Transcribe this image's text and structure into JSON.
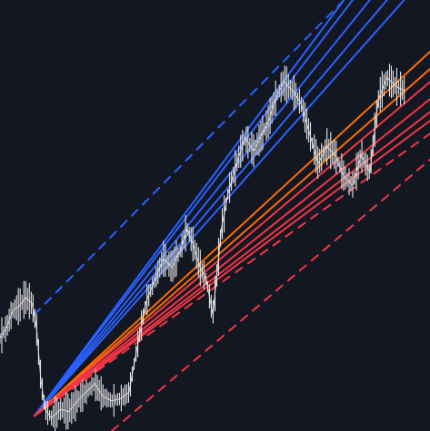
{
  "chart_data": {
    "type": "line",
    "title": "",
    "xlabel": "",
    "ylabel": "",
    "xlim": [
      0,
      100
    ],
    "ylim": [
      0,
      100
    ],
    "grid": false,
    "legend": "none",
    "colors": {
      "background": "#131722",
      "price": "#e6e6e6",
      "blue": "#2962ff",
      "orange": "#ff6d00",
      "red": "#f23645"
    },
    "price_series": {
      "name": "",
      "x": [
        0,
        1.5,
        3,
        4.5,
        6,
        7.5,
        8.5,
        9.5,
        10.5,
        12,
        14,
        16,
        18,
        20,
        22,
        24,
        26,
        28,
        30,
        32,
        34,
        36,
        38,
        40,
        42,
        43.5,
        45,
        46.5,
        48,
        49.5,
        50.5,
        51.5,
        53,
        55,
        57,
        59,
        61,
        62.5,
        64,
        66,
        68,
        70,
        72,
        74,
        76,
        78,
        80,
        82,
        84,
        86,
        88,
        90,
        92,
        94
      ],
      "y": [
        21.5,
        24,
        28,
        29,
        31,
        29.5,
        24,
        12,
        5,
        3,
        5,
        4.5,
        7,
        9,
        11,
        8,
        7,
        7.5,
        9,
        20,
        30,
        35,
        40,
        38,
        42,
        47,
        43,
        38,
        35,
        27,
        37,
        47,
        55,
        62,
        68,
        65,
        69,
        72,
        77,
        81,
        79,
        76,
        69,
        62,
        66,
        64,
        59,
        57,
        64,
        60,
        77,
        82,
        80,
        79
      ]
    },
    "fan_origin": [
      8,
      3.5
    ],
    "fan_lines": [
      {
        "name": "",
        "style": "dashed",
        "color": "#2962ff",
        "x": [
          8,
          80
        ],
        "y": [
          27,
          100
        ]
      },
      {
        "name": "",
        "style": "solid",
        "color": "#2962ff",
        "x": [
          8,
          80
        ],
        "y": [
          3.5,
          100
        ]
      },
      {
        "name": "",
        "style": "solid",
        "color": "#2962ff",
        "x": [
          8,
          82
        ],
        "y": [
          3.5,
          100
        ]
      },
      {
        "name": "",
        "style": "solid",
        "color": "#2962ff",
        "x": [
          8,
          86
        ],
        "y": [
          3.5,
          100
        ]
      },
      {
        "name": "",
        "style": "solid",
        "color": "#2962ff",
        "x": [
          8,
          90
        ],
        "y": [
          3.5,
          100
        ]
      },
      {
        "name": "",
        "style": "solid",
        "color": "#2962ff",
        "x": [
          8,
          94
        ],
        "y": [
          3.5,
          100
        ]
      },
      {
        "name": "",
        "style": "solid",
        "color": "#ff6d00",
        "x": [
          8,
          100
        ],
        "y": [
          3.5,
          88
        ]
      },
      {
        "name": "",
        "style": "solid",
        "color": "#ff6d00",
        "x": [
          8,
          100
        ],
        "y": [
          3.5,
          84
        ]
      },
      {
        "name": "",
        "style": "solid",
        "color": "#f23645",
        "x": [
          8,
          100
        ],
        "y": [
          3.5,
          81
        ]
      },
      {
        "name": "",
        "style": "solid",
        "color": "#f23645",
        "x": [
          8,
          100
        ],
        "y": [
          3.5,
          77
        ]
      },
      {
        "name": "",
        "style": "solid",
        "color": "#f23645",
        "x": [
          8,
          100
        ],
        "y": [
          3.5,
          74
        ]
      },
      {
        "name": "",
        "style": "solid",
        "color": "#f23645",
        "x": [
          8,
          100
        ],
        "y": [
          3.5,
          72
        ]
      },
      {
        "name": "",
        "style": "dashed",
        "color": "#f23645",
        "x": [
          8,
          100
        ],
        "y": [
          3.5,
          69
        ]
      },
      {
        "name": "",
        "style": "dashed",
        "color": "#f23645",
        "x": [
          26,
          100
        ],
        "y": [
          0,
          63
        ]
      }
    ]
  }
}
